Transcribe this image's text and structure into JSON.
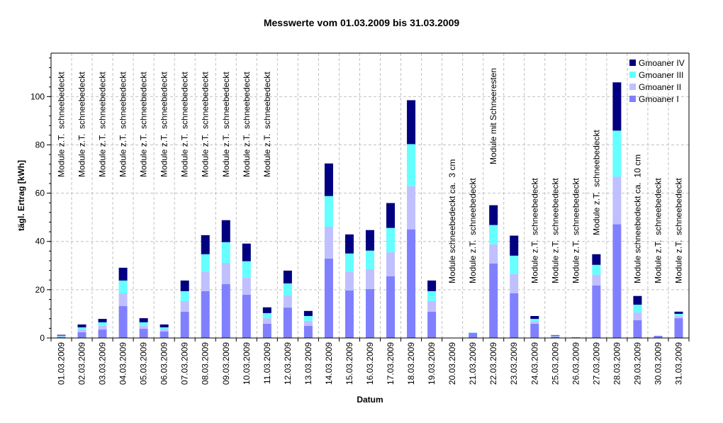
{
  "chart_data": {
    "type": "bar",
    "stacked": true,
    "title": "Messwerte vom 01.03.2009 bis 31.03.2009",
    "xlabel": "Datum",
    "ylabel": "tägl. Ertrag [kWh]",
    "ylim": [
      0,
      118
    ],
    "yticks": [
      0,
      20,
      40,
      60,
      80,
      100
    ],
    "grid": true,
    "legend_position": "top-right",
    "categories": [
      "01.03.2009",
      "02.03.2009",
      "03.03.2009",
      "04.03.2009",
      "05.03.2009",
      "06.03.2009",
      "07.03.2009",
      "08.03.2009",
      "09.03.2009",
      "10.03.2009",
      "11.03.2009",
      "12.03.2009",
      "13.03.2009",
      "14.03.2009",
      "15.03.2009",
      "16.03.2009",
      "17.03.2009",
      "18.03.2009",
      "19.03.2009",
      "20.03.2009",
      "21.03.2009",
      "22.03.2009",
      "23.03.2009",
      "24.03.2009",
      "25.03.2009",
      "26.03.2009",
      "27.03.2009",
      "28.03.2009",
      "29.03.2009",
      "30.03.2009",
      "31.03.2009"
    ],
    "series": [
      {
        "name": "Gmoaner I",
        "color": "#8080ff",
        "values": [
          0.5,
          2.4,
          3.5,
          13.2,
          3.8,
          2.7,
          10.9,
          19.4,
          22.3,
          17.9,
          5.9,
          12.6,
          5.0,
          32.9,
          19.7,
          20.3,
          25.6,
          45.0,
          10.9,
          0,
          2.1,
          30.9,
          18.5,
          5.9,
          0.6,
          0.3,
          21.8,
          47.1,
          7.4,
          0.9,
          8.2
        ]
      },
      {
        "name": "Gmoaner II",
        "color": "#c0c0ff",
        "values": [
          0.2,
          1.1,
          1.5,
          5.3,
          1.4,
          0.8,
          4.4,
          7.9,
          8.8,
          7.1,
          2.3,
          5.0,
          2.1,
          13.2,
          7.7,
          8.2,
          10.0,
          17.9,
          4.4,
          0,
          0.1,
          7.9,
          8.0,
          1.1,
          0.2,
          0,
          4.4,
          19.7,
          3.2,
          0,
          0.9
        ]
      },
      {
        "name": "Gmoaner III",
        "color": "#66ffff",
        "values": [
          0.3,
          0.9,
          1.5,
          5.3,
          1.3,
          0.9,
          4.1,
          7.4,
          8.6,
          6.8,
          2.1,
          5.0,
          2.0,
          12.7,
          7.6,
          7.7,
          10.0,
          17.4,
          4.1,
          0,
          0.1,
          8.0,
          7.6,
          0.9,
          0.2,
          0,
          4.1,
          19.1,
          3.2,
          0,
          0.9
        ]
      },
      {
        "name": "Gmoaner IV",
        "color": "#000080",
        "values": [
          0.3,
          1.2,
          1.4,
          5.3,
          1.7,
          1.2,
          4.4,
          7.9,
          9.1,
          7.3,
          2.4,
          5.3,
          2.1,
          13.5,
          7.9,
          8.5,
          10.3,
          18.2,
          4.4,
          0,
          0,
          8.2,
          8.3,
          1.2,
          0.2,
          0,
          4.4,
          20.0,
          3.6,
          0,
          0.9
        ]
      }
    ],
    "annotations": [
      {
        "day": "01.03.2009",
        "text": "Module z.T.  schneebedeckt"
      },
      {
        "day": "02.03.2009",
        "text": "Module z.T.  schneebedeckt"
      },
      {
        "day": "03.03.2009",
        "text": "Module z.T.  schneebedeckt"
      },
      {
        "day": "04.03.2009",
        "text": "Module z.T.  schneebedeckt"
      },
      {
        "day": "05.03.2009",
        "text": "Module z.T.  schneebedeckt"
      },
      {
        "day": "06.03.2009",
        "text": "Module z.T.  schneebedeckt"
      },
      {
        "day": "07.03.2009",
        "text": "Module z.T.  schneebedeckt"
      },
      {
        "day": "08.03.2009",
        "text": "Module z.T.  schneebedeckt"
      },
      {
        "day": "09.03.2009",
        "text": "Module z.T.  schneebedeckt"
      },
      {
        "day": "10.03.2009",
        "text": "Module z.T.  schneebedeckt"
      },
      {
        "day": "11.03.2009",
        "text": "Module z.T.  schneebedeckt"
      },
      {
        "day": "20.03.2009",
        "text": "Module schneebedeckt ca.  3 cm"
      },
      {
        "day": "21.03.2009",
        "text": "Module z.T.  schneebedeckt"
      },
      {
        "day": "22.03.2009",
        "text": "Module mit Schneeresten"
      },
      {
        "day": "24.03.2009",
        "text": "Module z.T.  schneebedeckt"
      },
      {
        "day": "25.03.2009",
        "text": "Module z.T.  schneebedeckt"
      },
      {
        "day": "26.03.2009",
        "text": "Module z.T.  schneebedeckt"
      },
      {
        "day": "27.03.2009",
        "text": "Module z.T.  schneebedeckt"
      },
      {
        "day": "29.03.2009",
        "text": "Module schneebedeckt ca.  10 cm"
      },
      {
        "day": "30.03.2009",
        "text": "Module z.T.  schneebedeckt"
      },
      {
        "day": "31.03.2009",
        "text": "Module z.T.  schneebedeckt"
      }
    ]
  }
}
